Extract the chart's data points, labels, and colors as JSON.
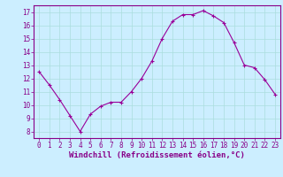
{
  "x": [
    0,
    1,
    2,
    3,
    4,
    5,
    6,
    7,
    8,
    9,
    10,
    11,
    12,
    13,
    14,
    15,
    16,
    17,
    18,
    19,
    20,
    21,
    22,
    23
  ],
  "y": [
    12.5,
    11.5,
    10.4,
    9.2,
    8.0,
    9.3,
    9.9,
    10.2,
    10.2,
    11.0,
    12.0,
    13.3,
    15.0,
    16.3,
    16.8,
    16.8,
    17.1,
    16.7,
    16.2,
    14.7,
    13.0,
    12.8,
    11.9,
    10.8
  ],
  "line_color": "#990099",
  "marker": "+",
  "marker_size": 3,
  "bg_color": "#cceeff",
  "grid_color": "#aadddd",
  "xlabel": "Windchill (Refroidissement éolien,°C)",
  "xlim": [
    -0.5,
    23.5
  ],
  "ylim": [
    7.5,
    17.5
  ],
  "yticks": [
    8,
    9,
    10,
    11,
    12,
    13,
    14,
    15,
    16,
    17
  ],
  "xticks": [
    0,
    1,
    2,
    3,
    4,
    5,
    6,
    7,
    8,
    9,
    10,
    11,
    12,
    13,
    14,
    15,
    16,
    17,
    18,
    19,
    20,
    21,
    22,
    23
  ],
  "tick_color": "#880088",
  "label_color": "#880088",
  "axis_color": "#880088",
  "tick_fontsize": 5.5,
  "xlabel_fontsize": 6.5
}
